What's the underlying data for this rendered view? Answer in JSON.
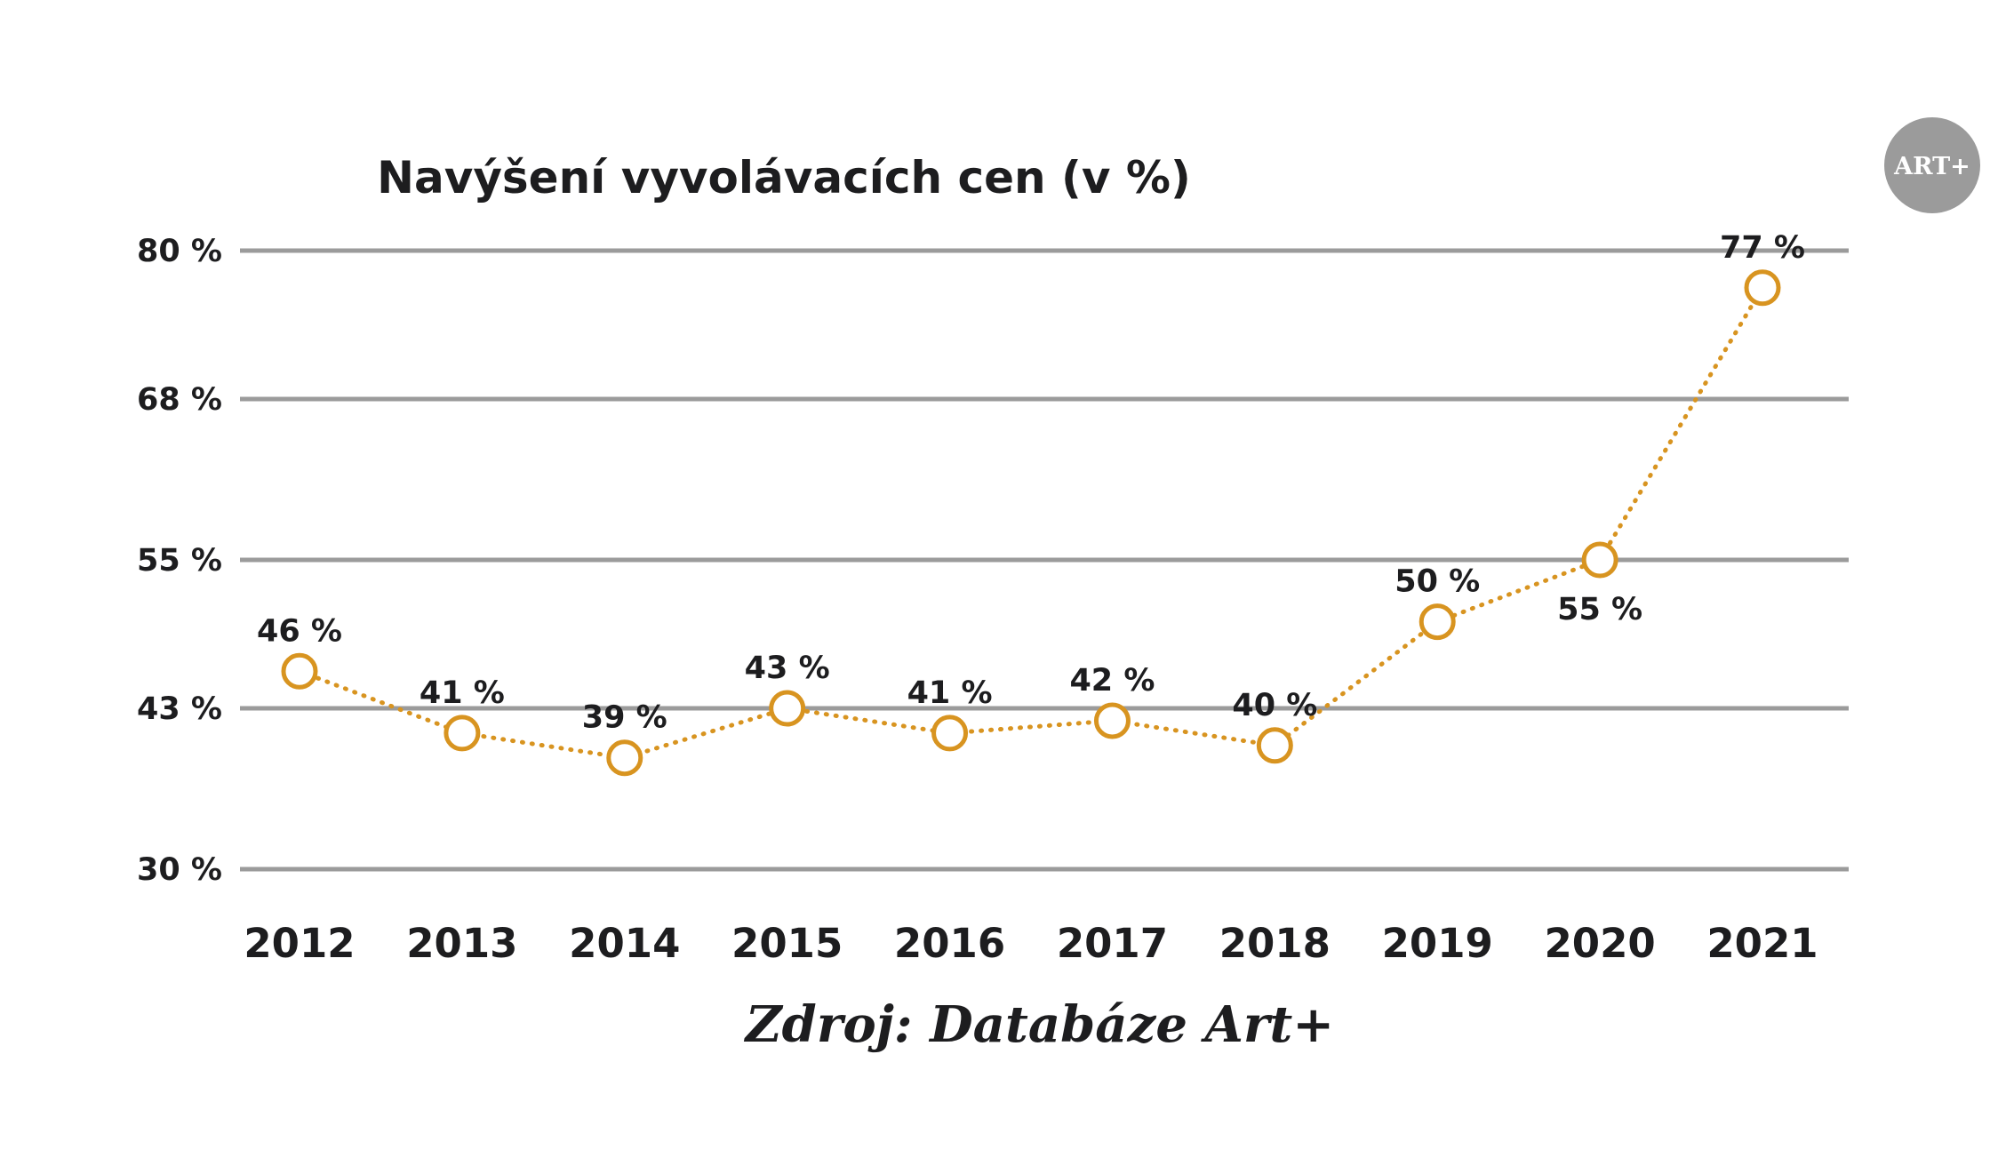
{
  "colors": {
    "line": "#d89420",
    "grid": "#9b9b9b",
    "text": "#1d1d1f",
    "logo_bg": "#9b9b9b"
  },
  "logo": {
    "text": "ART+"
  },
  "source_label": "Zdroj: Databáze Art+",
  "chart_data": {
    "type": "line",
    "title": "Navýšení vyvolávacích cen (v %)",
    "xlabel": "",
    "ylabel": "",
    "categories": [
      "2012",
      "2013",
      "2014",
      "2015",
      "2016",
      "2017",
      "2018",
      "2019",
      "2020",
      "2021"
    ],
    "series": [
      {
        "name": "Navýšení vyvolávacích cen",
        "values": [
          46,
          41,
          39,
          43,
          41,
          42,
          40,
          50,
          55,
          77
        ]
      }
    ],
    "data_labels": [
      "46 %",
      "41 %",
      "39 %",
      "43 %",
      "41 %",
      "42 %",
      "40 %",
      "50 %",
      "55 %",
      "77 %"
    ],
    "yticks": [
      30,
      43,
      55,
      68,
      80
    ],
    "ytick_labels": [
      "30 %",
      "43 %",
      "55 %",
      "68 %",
      "80 %"
    ],
    "ylim": [
      30,
      80
    ],
    "grid": true,
    "line_style": "dotted",
    "marker": "hollow-circle"
  }
}
